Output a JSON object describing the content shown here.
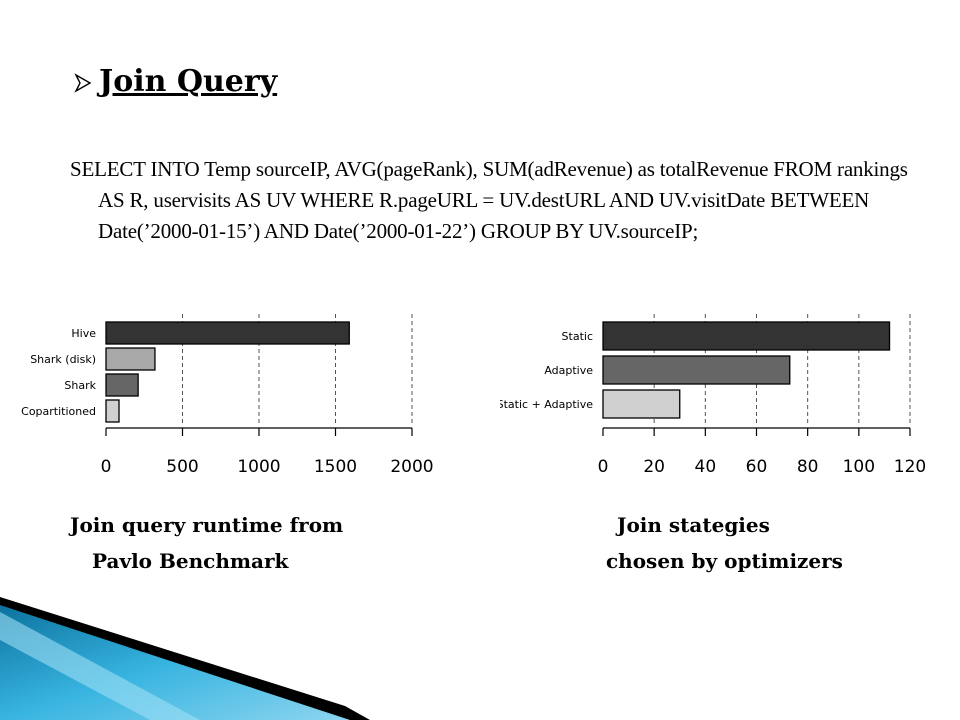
{
  "slide": {
    "heading": "Join Query",
    "query_text": "SELECT INTO Temp sourceIP, AVG(pageRank), SUM(adRevenue) as totalRevenue FROM rankings AS R, uservisits AS UV WHERE R.pageURL = UV.destURL AND UV.visitDate BETWEEN Date(’2000-01-15’) AND Date(’2000-01-22’) GROUP BY UV.sourceIP;",
    "captions": {
      "left_line1": "Join query runtime from",
      "left_line2": "Pavlo Benchmark",
      "right_line1": "Join stategies",
      "right_line2": "chosen by optimizers"
    }
  },
  "colors": {
    "accent": "#1a9fd0",
    "dark": "#000000"
  },
  "chart_data": [
    {
      "type": "bar",
      "orientation": "horizontal",
      "categories": [
        "Hive",
        "Shark (disk)",
        "Shark",
        "Copartitioned"
      ],
      "values": [
        1590,
        320,
        210,
        85
      ],
      "bar_colors": [
        "#333333",
        "#a8a8a8",
        "#666666",
        "#d0d0d0"
      ],
      "xlim": [
        0,
        2000
      ],
      "xticks": [
        0,
        500,
        1000,
        1500,
        2000
      ],
      "grid": "vertical dashed"
    },
    {
      "type": "bar",
      "orientation": "horizontal",
      "categories": [
        "Static",
        "Adaptive",
        "Static + Adaptive"
      ],
      "values": [
        112,
        73,
        30
      ],
      "bar_colors": [
        "#333333",
        "#666666",
        "#d0d0d0"
      ],
      "xlim": [
        0,
        120
      ],
      "xticks": [
        0,
        20,
        40,
        60,
        80,
        100,
        120
      ],
      "grid": "vertical dashed"
    }
  ]
}
